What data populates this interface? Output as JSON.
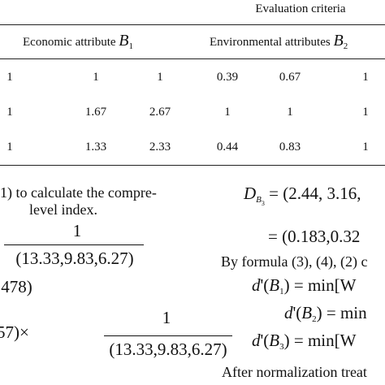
{
  "table": {
    "group_header": "Evaluation criteria",
    "columns": [
      {
        "label": "Economic attribute",
        "symbol": "B",
        "subscript": "1"
      },
      {
        "label": "Environmental attributes",
        "symbol": "B",
        "subscript": "2"
      }
    ],
    "rows": [
      [
        "1",
        "1",
        "1",
        "0.39",
        "0.67",
        "1"
      ],
      [
        "1",
        "1.67",
        "2.67",
        "1",
        "1",
        "1"
      ],
      [
        "1",
        "1.33",
        "2.33",
        "0.44",
        "0.83",
        "1"
      ]
    ]
  },
  "left_text": {
    "lines": [
      "1) to calculate the compre-",
      "level index."
    ],
    "eq1": {
      "numerator": "1",
      "denominator": "(13.33,9.83,6.27)"
    },
    "eq2": ".478)",
    "eq3": {
      "prefix": "57)×",
      "numerator": "1",
      "denominator": "(13.33,9.83,6.27)"
    }
  },
  "right_text": {
    "eq1": {
      "symbol": "D",
      "sub": "B",
      "subsub": "3",
      "rest": "= (2.44, 3.16,"
    },
    "eq2": "= (0.183,0.32",
    "line": "By formula (3), (4), (2) c",
    "d_lines": [
      {
        "symbol": "d",
        "prime": "'(",
        "var": "B",
        "sub": "1",
        "rest": ") = min[W"
      },
      {
        "symbol": "d",
        "prime": "'(",
        "var": "B",
        "sub": "2",
        "rest": ") = min"
      },
      {
        "symbol": "d",
        "prime": "'(",
        "var": "B",
        "sub": "3",
        "rest": ") = min[W"
      }
    ],
    "last": "After normalization treat"
  }
}
